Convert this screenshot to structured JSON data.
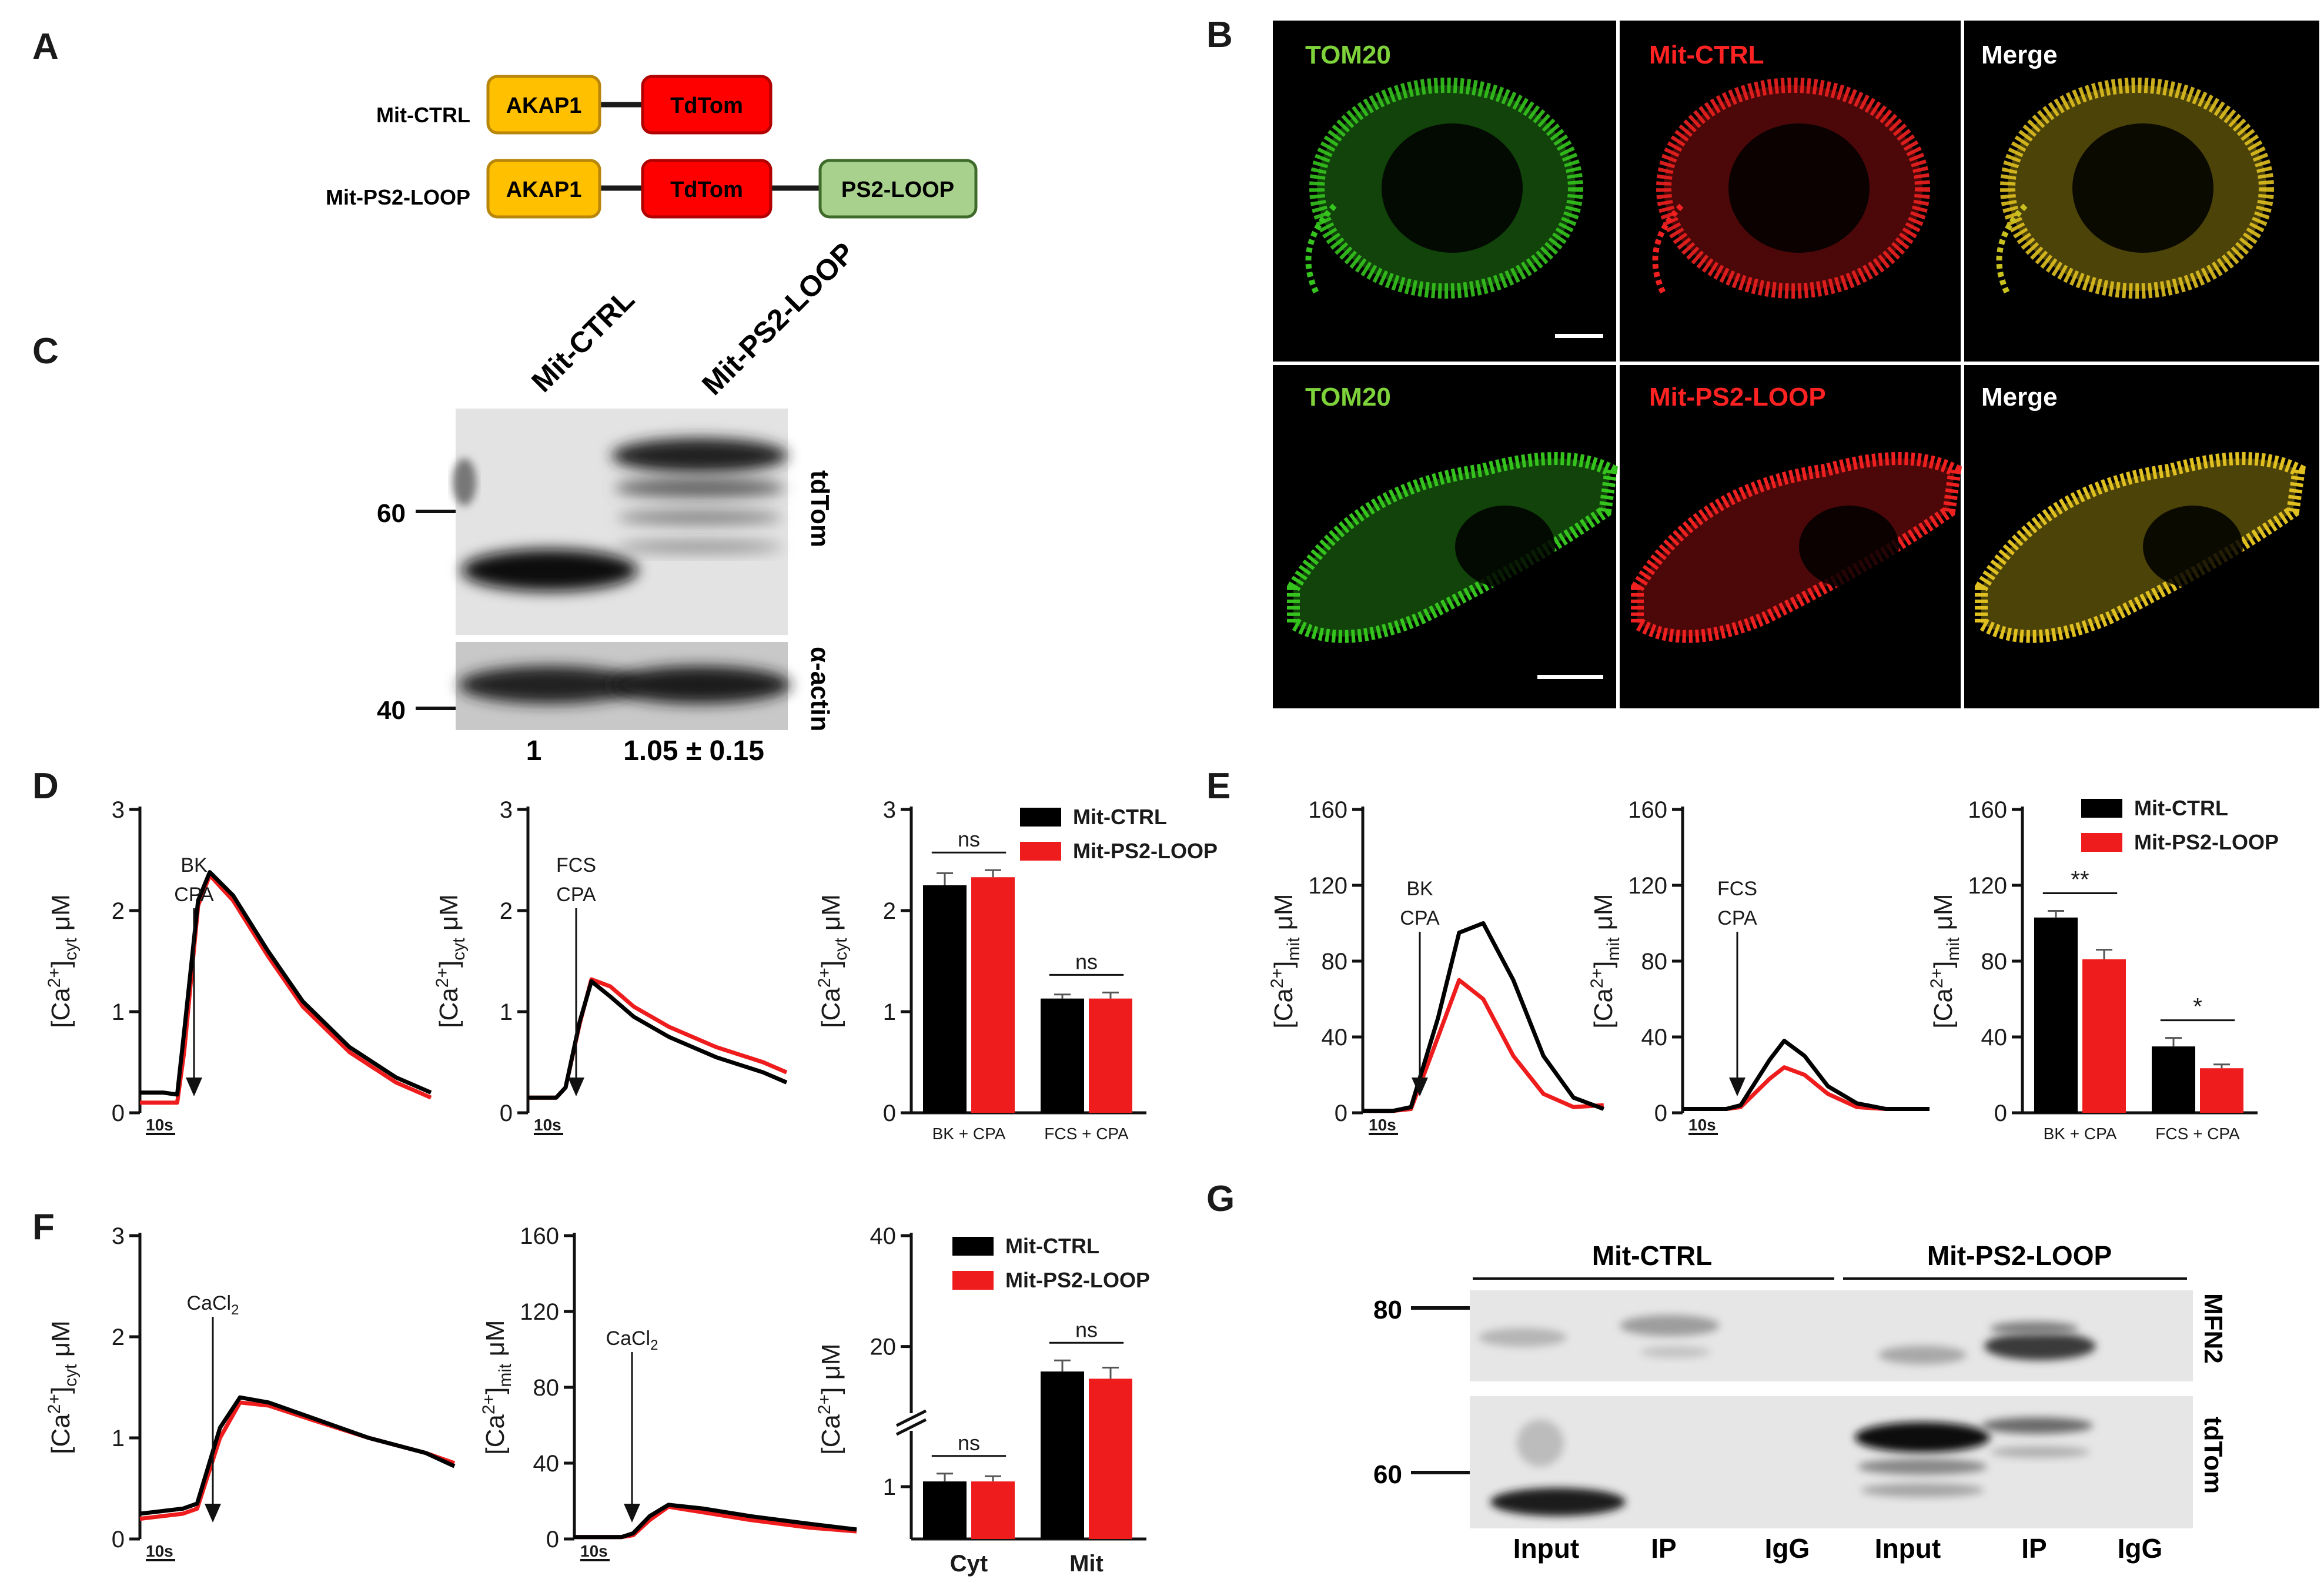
{
  "figure": {
    "panel_letters": [
      "A",
      "B",
      "C",
      "D",
      "E",
      "F",
      "G"
    ],
    "colors": {
      "ctrl": "#000000",
      "loop": "#ee1c1c",
      "akap": "#ffc000",
      "tdtom": "#ff0000",
      "ps2loop": "#a9d18e",
      "tom20_label": "#7ed23a",
      "red_label": "#ff2222"
    }
  },
  "panel_a": {
    "constructs": [
      {
        "name": "Mit-CTRL",
        "domains": [
          "AKAP1",
          "TdTom"
        ]
      },
      {
        "name": "Mit-PS2-LOOP",
        "domains": [
          "AKAP1",
          "TdTom",
          "PS2-LOOP"
        ]
      }
    ]
  },
  "panel_b": {
    "rows": [
      {
        "labels": [
          "TOM20",
          "Mit-CTRL",
          "Merge"
        ]
      },
      {
        "labels": [
          "TOM20",
          "Mit-PS2-LOOP",
          "Merge"
        ]
      }
    ]
  },
  "panel_c": {
    "lanes": [
      "Mit-CTRL",
      "Mit-PS2-LOOP"
    ],
    "markers": [
      "60",
      "40"
    ],
    "antibodies": [
      "tdTom",
      "α-actin"
    ],
    "quantification": [
      "1",
      "1.05 ± 0.15"
    ]
  },
  "panel_d": {
    "trace1": {
      "stimulus": [
        "BK",
        "CPA"
      ],
      "yticks": [
        "0",
        "1",
        "2",
        "3"
      ],
      "ylabel_main": "[Ca",
      "ylabel_sup": "2+",
      "ylabel_after": "]",
      "ylabel_sub": "cyt",
      "ylabel_unit": " μM",
      "scalebar": "10s"
    },
    "trace2": {
      "stimulus": [
        "FCS",
        "CPA"
      ],
      "yticks": [
        "0",
        "1",
        "2",
        "3"
      ],
      "scalebar": "10s"
    },
    "bar": {
      "yticks": [
        "0",
        "1",
        "2",
        "3"
      ],
      "legend": [
        "Mit-CTRL",
        "Mit-PS2-LOOP"
      ],
      "sig": [
        "ns",
        "ns"
      ]
    }
  },
  "panel_e": {
    "trace1": {
      "stimulus": [
        "BK",
        "CPA"
      ],
      "yticks": [
        "0",
        "40",
        "80",
        "120",
        "160"
      ],
      "ylabel_sub": "mit",
      "scalebar": "10s"
    },
    "trace2": {
      "stimulus": [
        "FCS",
        "CPA"
      ],
      "yticks": [
        "0",
        "40",
        "80",
        "120",
        "160"
      ],
      "scalebar": "10s"
    },
    "bar": {
      "yticks": [
        "0",
        "40",
        "80",
        "120",
        "160"
      ],
      "legend": [
        "Mit-CTRL",
        "Mit-PS2-LOOP"
      ],
      "sig": [
        "**",
        "*"
      ]
    }
  },
  "panel_f": {
    "trace1": {
      "stimulus": "CaCl",
      "stimulus_sub": "2",
      "yticks": [
        "0",
        "1",
        "2",
        "3"
      ],
      "scalebar": "10s"
    },
    "trace2": {
      "stimulus": "CaCl",
      "stimulus_sub": "2",
      "yticks": [
        "0",
        "40",
        "80",
        "120",
        "160"
      ],
      "scalebar": "10s"
    },
    "bar": {
      "yticks": [
        "1",
        "20",
        "40"
      ],
      "legend": [
        "Mit-CTRL",
        "Mit-PS2-LOOP"
      ],
      "sig": [
        "ns",
        "ns"
      ],
      "ylabel_main": "[Ca",
      "ylabel_sup": "2+",
      "ylabel_after": "] ",
      "ylabel_unit": "μM"
    }
  },
  "panel_g": {
    "groups": [
      "Mit-CTRL",
      "Mit-PS2-LOOP"
    ],
    "lanes": [
      "Input",
      "IP",
      "IgG",
      "Input",
      "IP",
      "IgG"
    ],
    "markers": [
      "80",
      "60"
    ],
    "antibodies": [
      "MFN2",
      "tdTom"
    ]
  },
  "chart_data": [
    {
      "type": "bar",
      "panel": "D",
      "categories": [
        "BK + CPA",
        "FCS + CPA"
      ],
      "series": [
        {
          "name": "Mit-CTRL",
          "values": [
            2.25,
            1.13
          ],
          "errors": [
            0.12,
            0.04
          ]
        },
        {
          "name": "Mit-PS2-LOOP",
          "values": [
            2.33,
            1.13
          ],
          "errors": [
            0.07,
            0.06
          ]
        }
      ],
      "ylim": [
        0,
        3
      ],
      "legend": "top-right"
    },
    {
      "type": "bar",
      "panel": "E",
      "categories": [
        "BK + CPA",
        "FCS + CPA"
      ],
      "series": [
        {
          "name": "Mit-CTRL",
          "values": [
            103,
            35
          ],
          "errors": [
            3.5,
            4.5
          ]
        },
        {
          "name": "Mit-PS2-LOOP",
          "values": [
            81,
            23.5
          ],
          "errors": [
            5,
            2
          ]
        }
      ],
      "ylim": [
        0,
        160
      ],
      "legend": "top-right"
    },
    {
      "type": "bar",
      "panel": "F",
      "categories": [
        "Cyt",
        "Mit"
      ],
      "series": [
        {
          "name": "Mit-CTRL",
          "values": [
            1.1,
            15.5
          ],
          "errors": [
            0.15,
            2
          ]
        },
        {
          "name": "Mit-PS2-LOOP",
          "values": [
            1.1,
            14.2
          ],
          "errors": [
            0.1,
            2
          ]
        }
      ],
      "y_axis": "broken (0-2 lower segment, 10-40 upper segment)",
      "legend": "top-right"
    },
    {
      "type": "line",
      "panel": "D-left",
      "ylim": [
        0,
        3
      ],
      "x": [
        0,
        10,
        16,
        19,
        25,
        30,
        40,
        55,
        70,
        90,
        110,
        125
      ],
      "series": [
        {
          "name": "Mit-CTRL",
          "values": [
            0.2,
            0.2,
            0.18,
            0.8,
            2.1,
            2.38,
            2.15,
            1.6,
            1.1,
            0.65,
            0.35,
            0.2
          ]
        },
        {
          "name": "Mit-PS2-LOOP",
          "values": [
            0.1,
            0.1,
            0.1,
            0.6,
            2.05,
            2.35,
            2.1,
            1.55,
            1.05,
            0.6,
            0.3,
            0.15
          ]
        }
      ]
    },
    {
      "type": "line",
      "panel": "D-middle",
      "ylim": [
        0,
        3
      ],
      "x": [
        0,
        12,
        16,
        22,
        27,
        35,
        45,
        60,
        80,
        100,
        110
      ],
      "series": [
        {
          "name": "Mit-CTRL",
          "values": [
            0.15,
            0.15,
            0.25,
            0.9,
            1.3,
            1.15,
            0.95,
            0.75,
            0.55,
            0.4,
            0.3
          ]
        },
        {
          "name": "Mit-PS2-LOOP",
          "values": [
            0.15,
            0.15,
            0.25,
            0.88,
            1.32,
            1.25,
            1.05,
            0.85,
            0.65,
            0.5,
            0.4
          ]
        }
      ]
    },
    {
      "type": "line",
      "panel": "E-left",
      "ylim": [
        0,
        160
      ],
      "x": [
        0,
        10,
        16,
        25,
        32,
        40,
        50,
        60,
        70,
        80
      ],
      "series": [
        {
          "name": "Mit-CTRL",
          "values": [
            1,
            1,
            3,
            50,
            95,
            100,
            70,
            30,
            8,
            2
          ]
        },
        {
          "name": "Mit-PS2-LOOP",
          "values": [
            1,
            1,
            2,
            40,
            70,
            60,
            30,
            10,
            3,
            4
          ]
        }
      ]
    },
    {
      "type": "line",
      "panel": "E-middle",
      "ylim": [
        0,
        160
      ],
      "x": [
        0,
        15,
        20,
        30,
        35,
        42,
        50,
        60,
        70,
        85
      ],
      "series": [
        {
          "name": "Mit-CTRL",
          "values": [
            2,
            2,
            4,
            28,
            38,
            30,
            14,
            5,
            2,
            2
          ]
        },
        {
          "name": "Mit-PS2-LOOP",
          "values": [
            2,
            2,
            3,
            18,
            24,
            20,
            10,
            3,
            2,
            2
          ]
        }
      ]
    },
    {
      "type": "line",
      "panel": "F-left",
      "ylim": [
        0,
        3
      ],
      "x": [
        0,
        15,
        20,
        28,
        35,
        45,
        60,
        80,
        100,
        110
      ],
      "series": [
        {
          "name": "Mit-CTRL",
          "values": [
            0.25,
            0.3,
            0.35,
            1.1,
            1.4,
            1.35,
            1.2,
            1.0,
            0.85,
            0.72
          ]
        },
        {
          "name": "Mit-PS2-LOOP",
          "values": [
            0.2,
            0.25,
            0.3,
            1.0,
            1.35,
            1.32,
            1.18,
            1.0,
            0.85,
            0.75
          ]
        }
      ]
    },
    {
      "type": "line",
      "panel": "F-middle",
      "ylim": [
        0,
        160
      ],
      "x": [
        0,
        20,
        25,
        32,
        40,
        55,
        75,
        100,
        120
      ],
      "series": [
        {
          "name": "Mit-CTRL",
          "values": [
            1,
            1,
            3,
            12,
            18,
            16,
            12,
            8,
            5
          ]
        },
        {
          "name": "Mit-PS2-LOOP",
          "values": [
            1,
            1,
            2,
            10,
            17,
            14,
            10,
            6,
            4
          ]
        }
      ]
    }
  ]
}
